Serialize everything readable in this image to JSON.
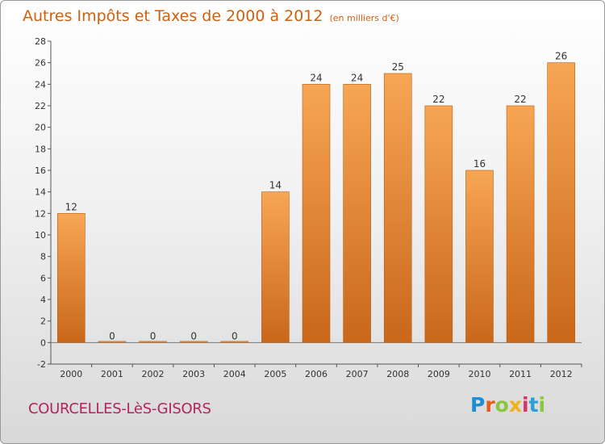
{
  "title": "Autres Impôts et Taxes de 2000 à 2012",
  "subtitle": "(en milliers d'€)",
  "commune": "COURCELLES-LèS-GISORS",
  "logo": {
    "letters": [
      "P",
      "r",
      "o",
      "x",
      "i",
      "t",
      "i"
    ],
    "colors": [
      "#1a8fd6",
      "#e85a1c",
      "#8bc63f",
      "#f0b21b",
      "#d8326b",
      "#2a9fd8",
      "#8bc63f"
    ]
  },
  "colors": {
    "bar": "#f29b3c",
    "bar_dark": "#c9671a",
    "text": "#d0600e"
  },
  "chart_data": {
    "type": "bar",
    "categories": [
      "2000",
      "2001",
      "2002",
      "2003",
      "2004",
      "2005",
      "2006",
      "2007",
      "2008",
      "2009",
      "2010",
      "2011",
      "2012"
    ],
    "values": [
      12,
      0,
      0,
      0,
      0,
      14,
      24,
      24,
      25,
      22,
      16,
      22,
      26
    ],
    "title": "Autres Impôts et Taxes de 2000 à 2012",
    "ylim": [
      -2,
      28
    ],
    "yticks": [
      -2,
      0,
      2,
      4,
      6,
      8,
      10,
      12,
      14,
      16,
      18,
      20,
      22,
      24,
      26,
      28
    ],
    "grid": false,
    "legend": "none"
  }
}
